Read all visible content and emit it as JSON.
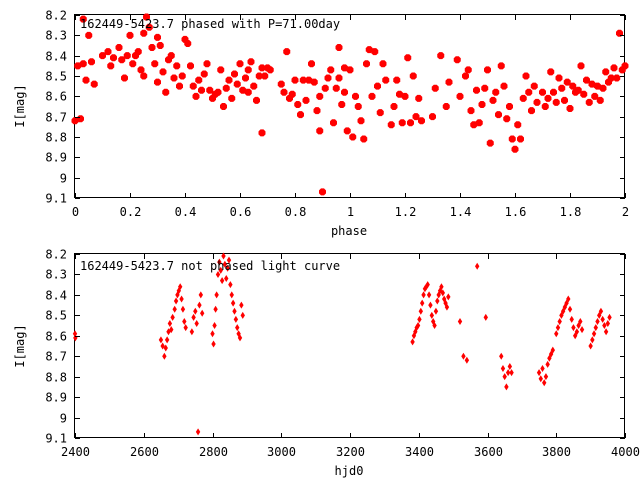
{
  "colors": {
    "points": "#ff0000",
    "axes": "#000000",
    "background": "#ffffff"
  },
  "chart_data": [
    {
      "type": "scatter",
      "title": "162449-5423.7 phased with P=71.00day",
      "xlabel": "phase",
      "ylabel": "I[mag]",
      "xlim": [
        0,
        2
      ],
      "ylim": [
        8.2,
        9.1
      ],
      "y_inverted": true,
      "grid": false,
      "marker": "filled-octagon",
      "x_ticks": [
        "0",
        "0.2",
        "0.4",
        "0.6",
        "0.8",
        "1",
        "1.2",
        "1.4",
        "1.6",
        "1.8",
        "2"
      ],
      "y_ticks": [
        "8.2",
        "8.3",
        "8.4",
        "8.5",
        "8.6",
        "8.7",
        "8.8",
        "8.9",
        "9",
        "9.1"
      ],
      "x_tick_values": [
        0,
        0.2,
        0.4,
        0.6,
        0.8,
        1,
        1.2,
        1.4,
        1.6,
        1.8,
        2
      ],
      "y_tick_values": [
        8.2,
        8.3,
        8.4,
        8.5,
        8.6,
        8.7,
        8.8,
        8.9,
        9.0,
        9.1
      ],
      "points": [
        [
          0.0,
          8.72
        ],
        [
          0.01,
          8.45
        ],
        [
          0.02,
          8.71
        ],
        [
          0.03,
          8.22
        ],
        [
          0.03,
          8.44
        ],
        [
          0.04,
          8.52
        ],
        [
          0.05,
          8.3
        ],
        [
          0.06,
          8.43
        ],
        [
          0.07,
          8.54
        ],
        [
          0.1,
          8.4
        ],
        [
          0.12,
          8.38
        ],
        [
          0.13,
          8.45
        ],
        [
          0.14,
          8.41
        ],
        [
          0.16,
          8.36
        ],
        [
          0.17,
          8.42
        ],
        [
          0.18,
          8.51
        ],
        [
          0.19,
          8.4
        ],
        [
          0.2,
          8.3
        ],
        [
          0.21,
          8.44
        ],
        [
          0.22,
          8.4
        ],
        [
          0.23,
          8.38
        ],
        [
          0.24,
          8.47
        ],
        [
          0.25,
          8.29
        ],
        [
          0.25,
          8.5
        ],
        [
          0.26,
          8.21
        ],
        [
          0.27,
          8.26
        ],
        [
          0.28,
          8.36
        ],
        [
          0.29,
          8.44
        ],
        [
          0.3,
          8.53
        ],
        [
          0.3,
          8.31
        ],
        [
          0.31,
          8.35
        ],
        [
          0.32,
          8.48
        ],
        [
          0.33,
          8.58
        ],
        [
          0.34,
          8.42
        ],
        [
          0.35,
          8.4
        ],
        [
          0.36,
          8.51
        ],
        [
          0.37,
          8.45
        ],
        [
          0.38,
          8.55
        ],
        [
          0.39,
          8.5
        ],
        [
          0.4,
          8.32
        ],
        [
          0.41,
          8.34
        ],
        [
          0.42,
          8.45
        ],
        [
          0.43,
          8.55
        ],
        [
          0.44,
          8.6
        ],
        [
          0.45,
          8.52
        ],
        [
          0.46,
          8.57
        ],
        [
          0.47,
          8.49
        ],
        [
          0.48,
          8.44
        ],
        [
          0.49,
          8.57
        ],
        [
          0.5,
          8.61
        ],
        [
          0.51,
          8.59
        ],
        [
          0.52,
          8.58
        ],
        [
          0.53,
          8.47
        ],
        [
          0.54,
          8.65
        ],
        [
          0.55,
          8.56
        ],
        [
          0.56,
          8.52
        ],
        [
          0.57,
          8.61
        ],
        [
          0.58,
          8.49
        ],
        [
          0.59,
          8.54
        ],
        [
          0.6,
          8.44
        ],
        [
          0.61,
          8.57
        ],
        [
          0.62,
          8.51
        ],
        [
          0.63,
          8.47
        ],
        [
          0.63,
          8.58
        ],
        [
          0.64,
          8.43
        ],
        [
          0.65,
          8.55
        ],
        [
          0.66,
          8.62
        ],
        [
          0.67,
          8.5
        ],
        [
          0.68,
          8.46
        ],
        [
          0.68,
          8.78
        ],
        [
          0.69,
          8.5
        ],
        [
          0.7,
          8.46
        ],
        [
          0.71,
          8.47
        ],
        [
          0.75,
          8.54
        ],
        [
          0.76,
          8.58
        ],
        [
          0.77,
          8.38
        ],
        [
          0.78,
          8.61
        ],
        [
          0.79,
          8.59
        ],
        [
          0.8,
          8.52
        ],
        [
          0.81,
          8.64
        ],
        [
          0.82,
          8.69
        ],
        [
          0.83,
          8.52
        ],
        [
          0.84,
          8.62
        ],
        [
          0.85,
          8.52
        ],
        [
          0.86,
          8.44
        ],
        [
          0.87,
          8.53
        ],
        [
          0.88,
          8.67
        ],
        [
          0.89,
          8.6
        ],
        [
          0.89,
          8.77
        ],
        [
          0.9,
          9.07
        ],
        [
          0.91,
          8.56
        ],
        [
          0.92,
          8.51
        ],
        [
          0.93,
          8.47
        ],
        [
          0.94,
          8.73
        ],
        [
          0.95,
          8.56
        ],
        [
          0.96,
          8.51
        ],
        [
          0.96,
          8.36
        ],
        [
          0.97,
          8.64
        ],
        [
          0.98,
          8.46
        ],
        [
          0.98,
          8.58
        ],
        [
          0.99,
          8.77
        ],
        [
          1.0,
          8.47
        ],
        [
          1.01,
          8.8
        ],
        [
          1.02,
          8.6
        ],
        [
          1.03,
          8.65
        ],
        [
          1.04,
          8.72
        ],
        [
          1.05,
          8.81
        ],
        [
          1.06,
          8.44
        ],
        [
          1.07,
          8.37
        ],
        [
          1.08,
          8.6
        ],
        [
          1.09,
          8.38
        ],
        [
          1.1,
          8.55
        ],
        [
          1.11,
          8.68
        ],
        [
          1.12,
          8.44
        ],
        [
          1.13,
          8.52
        ],
        [
          1.15,
          8.74
        ],
        [
          1.16,
          8.65
        ],
        [
          1.17,
          8.52
        ],
        [
          1.18,
          8.59
        ],
        [
          1.19,
          8.73
        ],
        [
          1.2,
          8.6
        ],
        [
          1.21,
          8.41
        ],
        [
          1.22,
          8.73
        ],
        [
          1.23,
          8.5
        ],
        [
          1.24,
          8.7
        ],
        [
          1.25,
          8.61
        ],
        [
          1.26,
          8.72
        ],
        [
          1.3,
          8.7
        ],
        [
          1.31,
          8.56
        ],
        [
          1.33,
          8.4
        ],
        [
          1.35,
          8.65
        ],
        [
          1.36,
          8.53
        ],
        [
          1.39,
          8.42
        ],
        [
          1.4,
          8.6
        ],
        [
          1.42,
          8.5
        ],
        [
          1.43,
          8.47
        ],
        [
          1.44,
          8.67
        ],
        [
          1.45,
          8.74
        ],
        [
          1.46,
          8.57
        ],
        [
          1.47,
          8.73
        ],
        [
          1.48,
          8.64
        ],
        [
          1.49,
          8.56
        ],
        [
          1.5,
          8.47
        ],
        [
          1.51,
          8.83
        ],
        [
          1.52,
          8.62
        ],
        [
          1.53,
          8.58
        ],
        [
          1.54,
          8.69
        ],
        [
          1.55,
          8.45
        ],
        [
          1.56,
          8.55
        ],
        [
          1.57,
          8.71
        ],
        [
          1.58,
          8.65
        ],
        [
          1.59,
          8.81
        ],
        [
          1.6,
          8.86
        ],
        [
          1.61,
          8.74
        ],
        [
          1.62,
          8.81
        ],
        [
          1.63,
          8.61
        ],
        [
          1.64,
          8.5
        ],
        [
          1.65,
          8.58
        ],
        [
          1.66,
          8.67
        ],
        [
          1.67,
          8.55
        ],
        [
          1.68,
          8.63
        ],
        [
          1.7,
          8.58
        ],
        [
          1.71,
          8.65
        ],
        [
          1.72,
          8.61
        ],
        [
          1.73,
          8.48
        ],
        [
          1.74,
          8.58
        ],
        [
          1.75,
          8.63
        ],
        [
          1.76,
          8.51
        ],
        [
          1.77,
          8.56
        ],
        [
          1.78,
          8.62
        ],
        [
          1.79,
          8.53
        ],
        [
          1.8,
          8.66
        ],
        [
          1.81,
          8.55
        ],
        [
          1.82,
          8.58
        ],
        [
          1.83,
          8.57
        ],
        [
          1.84,
          8.45
        ],
        [
          1.85,
          8.59
        ],
        [
          1.86,
          8.52
        ],
        [
          1.87,
          8.63
        ],
        [
          1.88,
          8.54
        ],
        [
          1.89,
          8.6
        ],
        [
          1.9,
          8.55
        ],
        [
          1.91,
          8.62
        ],
        [
          1.92,
          8.56
        ],
        [
          1.93,
          8.48
        ],
        [
          1.94,
          8.53
        ],
        [
          1.95,
          8.51
        ],
        [
          1.96,
          8.46
        ],
        [
          1.97,
          8.51
        ],
        [
          1.98,
          8.29
        ],
        [
          1.99,
          8.47
        ],
        [
          2.0,
          8.45
        ]
      ]
    },
    {
      "type": "scatter",
      "title": "162449-5423.7 not phased light curve",
      "xlabel": "hjd0",
      "ylabel": "I[mag]",
      "xlim": [
        2400,
        4000
      ],
      "ylim": [
        8.2,
        9.1
      ],
      "y_inverted": true,
      "grid": false,
      "marker": "filled-diamond",
      "x_ticks": [
        "2400",
        "2600",
        "2800",
        "3000",
        "3200",
        "3400",
        "3600",
        "3800",
        "4000"
      ],
      "y_ticks": [
        "8.2",
        "8.3",
        "8.4",
        "8.5",
        "8.6",
        "8.7",
        "8.8",
        "8.9",
        "9",
        "9.1"
      ],
      "x_tick_values": [
        2400,
        2600,
        2800,
        3000,
        3200,
        3400,
        3600,
        3800,
        4000
      ],
      "y_tick_values": [
        8.2,
        8.3,
        8.4,
        8.5,
        8.6,
        8.7,
        8.8,
        8.9,
        9.0,
        9.1
      ],
      "points": [
        [
          2400,
          8.59
        ],
        [
          2401,
          8.61
        ],
        [
          2650,
          8.62
        ],
        [
          2655,
          8.65
        ],
        [
          2660,
          8.7
        ],
        [
          2664,
          8.66
        ],
        [
          2668,
          8.62
        ],
        [
          2672,
          8.58
        ],
        [
          2676,
          8.54
        ],
        [
          2680,
          8.57
        ],
        [
          2684,
          8.51
        ],
        [
          2690,
          8.47
        ],
        [
          2694,
          8.43
        ],
        [
          2698,
          8.4
        ],
        [
          2702,
          8.38
        ],
        [
          2706,
          8.36
        ],
        [
          2710,
          8.42
        ],
        [
          2714,
          8.47
        ],
        [
          2718,
          8.53
        ],
        [
          2722,
          8.56
        ],
        [
          2740,
          8.58
        ],
        [
          2745,
          8.51
        ],
        [
          2750,
          8.48
        ],
        [
          2754,
          8.54
        ],
        [
          2758,
          9.07
        ],
        [
          2762,
          8.45
        ],
        [
          2766,
          8.4
        ],
        [
          2770,
          8.49
        ],
        [
          2800,
          8.59
        ],
        [
          2803,
          8.64
        ],
        [
          2806,
          8.55
        ],
        [
          2809,
          8.47
        ],
        [
          2812,
          8.4
        ],
        [
          2816,
          8.3
        ],
        [
          2820,
          8.24
        ],
        [
          2824,
          8.28
        ],
        [
          2828,
          8.33
        ],
        [
          2832,
          8.21
        ],
        [
          2836,
          8.25
        ],
        [
          2840,
          8.32
        ],
        [
          2844,
          8.27
        ],
        [
          2848,
          8.23
        ],
        [
          2852,
          8.35
        ],
        [
          2856,
          8.4
        ],
        [
          2860,
          8.44
        ],
        [
          2864,
          8.48
        ],
        [
          2868,
          8.52
        ],
        [
          2872,
          8.56
        ],
        [
          2876,
          8.59
        ],
        [
          2880,
          8.61
        ],
        [
          2884,
          8.45
        ],
        [
          2888,
          8.5
        ],
        [
          3382,
          8.63
        ],
        [
          3386,
          8.6
        ],
        [
          3390,
          8.58
        ],
        [
          3394,
          8.56
        ],
        [
          3398,
          8.55
        ],
        [
          3402,
          8.52
        ],
        [
          3406,
          8.48
        ],
        [
          3410,
          8.44
        ],
        [
          3414,
          8.4
        ],
        [
          3418,
          8.37
        ],
        [
          3422,
          8.36
        ],
        [
          3426,
          8.35
        ],
        [
          3430,
          8.4
        ],
        [
          3434,
          8.45
        ],
        [
          3438,
          8.5
        ],
        [
          3442,
          8.53
        ],
        [
          3446,
          8.55
        ],
        [
          3450,
          8.48
        ],
        [
          3454,
          8.43
        ],
        [
          3458,
          8.4
        ],
        [
          3462,
          8.38
        ],
        [
          3466,
          8.36
        ],
        [
          3470,
          8.39
        ],
        [
          3474,
          8.42
        ],
        [
          3478,
          8.44
        ],
        [
          3482,
          8.46
        ],
        [
          3486,
          8.41
        ],
        [
          3520,
          8.53
        ],
        [
          3530,
          8.7
        ],
        [
          3540,
          8.72
        ],
        [
          3570,
          8.26
        ],
        [
          3595,
          8.51
        ],
        [
          3640,
          8.7
        ],
        [
          3645,
          8.76
        ],
        [
          3650,
          8.8
        ],
        [
          3655,
          8.85
        ],
        [
          3660,
          8.78
        ],
        [
          3665,
          8.75
        ],
        [
          3670,
          8.78
        ],
        [
          3750,
          8.78
        ],
        [
          3755,
          8.81
        ],
        [
          3760,
          8.76
        ],
        [
          3765,
          8.83
        ],
        [
          3770,
          8.8
        ],
        [
          3775,
          8.74
        ],
        [
          3780,
          8.71
        ],
        [
          3785,
          8.69
        ],
        [
          3790,
          8.67
        ],
        [
          3800,
          8.59
        ],
        [
          3805,
          8.56
        ],
        [
          3810,
          8.53
        ],
        [
          3815,
          8.5
        ],
        [
          3820,
          8.48
        ],
        [
          3825,
          8.46
        ],
        [
          3830,
          8.44
        ],
        [
          3835,
          8.42
        ],
        [
          3840,
          8.47
        ],
        [
          3845,
          8.52
        ],
        [
          3850,
          8.56
        ],
        [
          3855,
          8.6
        ],
        [
          3860,
          8.58
        ],
        [
          3865,
          8.55
        ],
        [
          3870,
          8.53
        ],
        [
          3875,
          8.57
        ],
        [
          3900,
          8.65
        ],
        [
          3905,
          8.62
        ],
        [
          3910,
          8.59
        ],
        [
          3915,
          8.56
        ],
        [
          3920,
          8.53
        ],
        [
          3925,
          8.5
        ],
        [
          3930,
          8.48
        ],
        [
          3935,
          8.52
        ],
        [
          3940,
          8.55
        ],
        [
          3945,
          8.58
        ],
        [
          3950,
          8.54
        ],
        [
          3955,
          8.51
        ]
      ]
    }
  ]
}
